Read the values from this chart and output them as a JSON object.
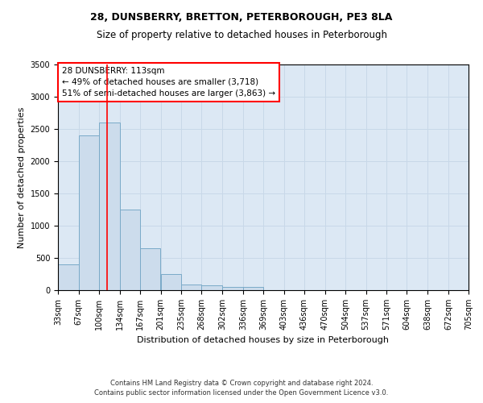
{
  "title1": "28, DUNSBERRY, BRETTON, PETERBOROUGH, PE3 8LA",
  "title2": "Size of property relative to detached houses in Peterborough",
  "xlabel": "Distribution of detached houses by size in Peterborough",
  "ylabel": "Number of detached properties",
  "footer1": "Contains HM Land Registry data © Crown copyright and database right 2024.",
  "footer2": "Contains public sector information licensed under the Open Government Licence v3.0.",
  "annotation_title": "28 DUNSBERRY: 113sqm",
  "annotation_line1": "← 49% of detached houses are smaller (3,718)",
  "annotation_line2": "51% of semi-detached houses are larger (3,863) →",
  "bar_edges": [
    33,
    67,
    100,
    134,
    167,
    201,
    235,
    268,
    302,
    336,
    369,
    403,
    436,
    470,
    504,
    537,
    571,
    604,
    638,
    672,
    705
  ],
  "bar_heights": [
    400,
    2400,
    2600,
    1250,
    650,
    250,
    90,
    75,
    55,
    45,
    0,
    0,
    0,
    0,
    0,
    0,
    0,
    0,
    0,
    0
  ],
  "bar_color": "#ccdcec",
  "bar_edge_color": "#7aaac8",
  "red_line_x": 113,
  "ylim": [
    0,
    3500
  ],
  "yticks": [
    0,
    500,
    1000,
    1500,
    2000,
    2500,
    3000,
    3500
  ],
  "grid_color": "#c8d8e8",
  "bg_color": "#dce8f4",
  "title_fontsize": 9,
  "subtitle_fontsize": 8.5,
  "axis_label_fontsize": 8,
  "tick_fontsize": 7,
  "footer_fontsize": 6
}
